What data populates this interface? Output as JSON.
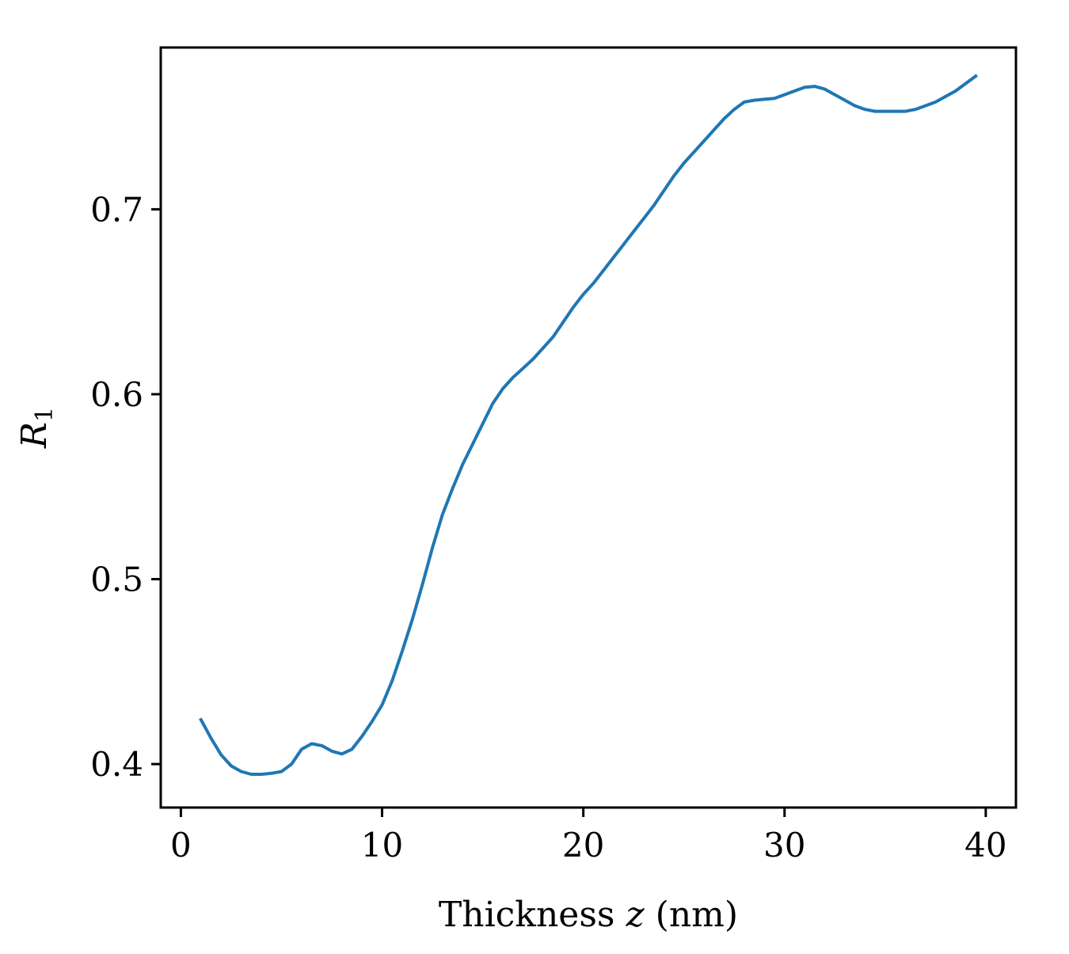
{
  "chart_data": {
    "type": "line",
    "title": "",
    "xlabel": {
      "prefix": "Thickness ",
      "var": "z",
      "suffix": " (nm)"
    },
    "ylabel": {
      "main": "R",
      "sub": "1"
    },
    "xlim": [
      -1,
      41.5
    ],
    "ylim": [
      0.3765,
      0.7875
    ],
    "xticks": [
      0,
      10,
      20,
      30,
      40
    ],
    "xtick_labels": [
      "0",
      "10",
      "20",
      "30",
      "40"
    ],
    "yticks": [
      0.4,
      0.5,
      0.6,
      0.7
    ],
    "ytick_labels": [
      "0.4",
      "0.5",
      "0.6",
      "0.7"
    ],
    "grid": false,
    "series": [
      {
        "color": "#1f77b4",
        "x": [
          1.0,
          1.5,
          2.0,
          2.5,
          3.0,
          3.5,
          4.0,
          4.5,
          5.0,
          5.5,
          6.0,
          6.5,
          7.0,
          7.5,
          8.0,
          8.5,
          9.0,
          9.5,
          10.0,
          10.5,
          11.0,
          11.5,
          12.0,
          12.5,
          13.0,
          13.5,
          14.0,
          14.5,
          15.0,
          15.5,
          16.0,
          16.5,
          17.0,
          17.5,
          18.0,
          18.5,
          19.0,
          19.5,
          20.0,
          20.5,
          21.0,
          21.5,
          22.0,
          22.5,
          23.0,
          23.5,
          24.0,
          24.5,
          25.0,
          25.5,
          26.0,
          26.5,
          27.0,
          27.5,
          28.0,
          28.5,
          29.0,
          29.5,
          30.0,
          30.5,
          31.0,
          31.5,
          32.0,
          32.5,
          33.0,
          33.5,
          34.0,
          34.5,
          35.0,
          35.5,
          36.0,
          36.5,
          37.0,
          37.5,
          38.0,
          38.5,
          39.0,
          39.5
        ],
        "values": [
          0.424,
          0.414,
          0.405,
          0.399,
          0.396,
          0.3945,
          0.3945,
          0.395,
          0.396,
          0.4,
          0.408,
          0.411,
          0.41,
          0.407,
          0.4055,
          0.408,
          0.415,
          0.423,
          0.432,
          0.445,
          0.461,
          0.478,
          0.497,
          0.517,
          0.535,
          0.549,
          0.562,
          0.573,
          0.584,
          0.595,
          0.603,
          0.609,
          0.614,
          0.619,
          0.625,
          0.631,
          0.639,
          0.647,
          0.654,
          0.66,
          0.667,
          0.674,
          0.681,
          0.688,
          0.695,
          0.702,
          0.71,
          0.718,
          0.725,
          0.731,
          0.737,
          0.743,
          0.749,
          0.754,
          0.758,
          0.759,
          0.7595,
          0.76,
          0.762,
          0.764,
          0.766,
          0.7665,
          0.765,
          0.762,
          0.759,
          0.756,
          0.754,
          0.753,
          0.753,
          0.753,
          0.753,
          0.754,
          0.756,
          0.758,
          0.761,
          0.764,
          0.768,
          0.772
        ]
      }
    ]
  }
}
